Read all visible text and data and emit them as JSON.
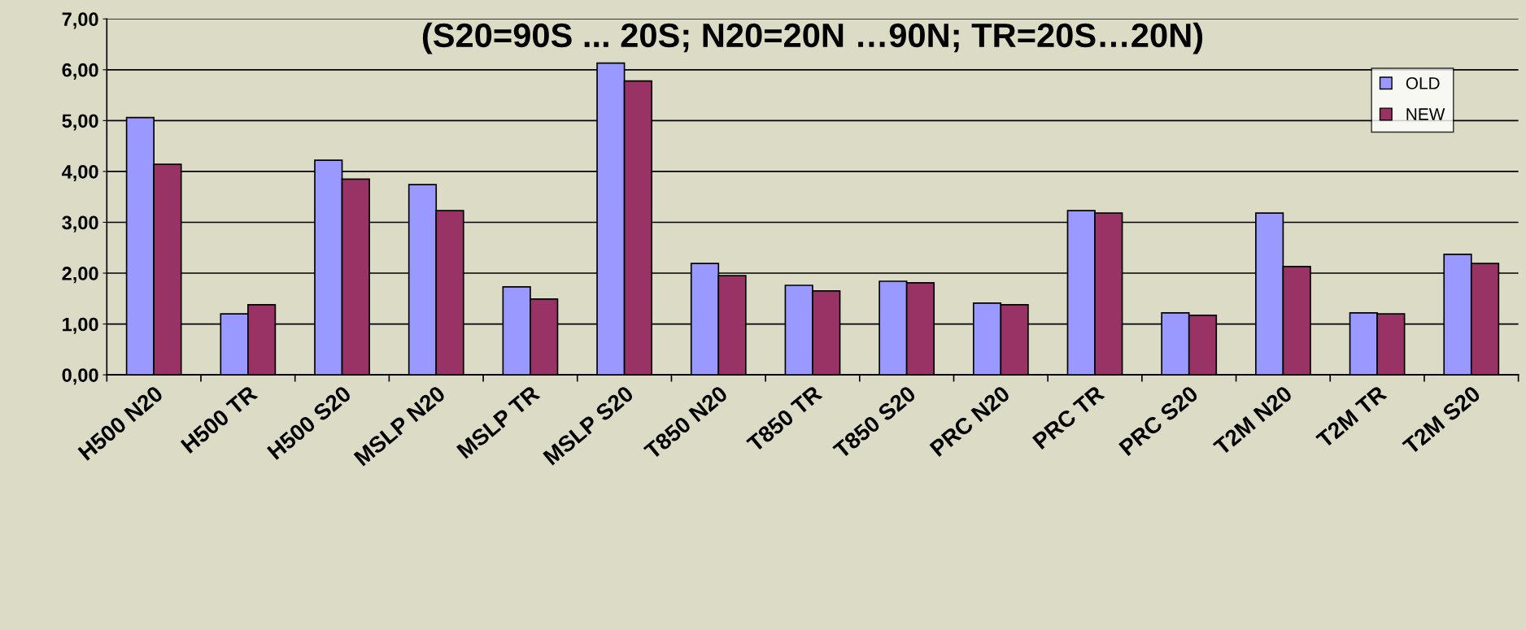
{
  "chart_data": {
    "type": "bar",
    "title": "(S20=90S ... 20S; N20=20N …90N; TR=20S…20N)",
    "categories": [
      "H500 N20",
      "H500 TR",
      "H500 S20",
      "MSLP N20",
      "MSLP TR",
      "MSLP S20",
      "T850 N20",
      "T850 TR",
      "T850 S20",
      "PRC N20",
      "PRC TR",
      "PRC S20",
      "T2M N20",
      "T2M TR",
      "T2M S20"
    ],
    "series": [
      {
        "name": "OLD",
        "color": "#9999ff",
        "values": [
          5.06,
          1.2,
          4.22,
          3.74,
          1.73,
          6.13,
          2.19,
          1.76,
          1.84,
          1.41,
          3.23,
          1.22,
          3.18,
          1.22,
          2.37
        ]
      },
      {
        "name": "NEW",
        "color": "#993366",
        "values": [
          4.14,
          1.38,
          3.85,
          3.23,
          1.49,
          5.78,
          1.95,
          1.65,
          1.81,
          1.38,
          3.18,
          1.17,
          2.13,
          1.2,
          2.19
        ]
      }
    ],
    "ylim": [
      0,
      7
    ],
    "yticks": [
      {
        "value": 0,
        "label": "0,00"
      },
      {
        "value": 1,
        "label": "1,00"
      },
      {
        "value": 2,
        "label": "2,00"
      },
      {
        "value": 3,
        "label": "3,00"
      },
      {
        "value": 4,
        "label": "4,00"
      },
      {
        "value": 5,
        "label": "5,00"
      },
      {
        "value": 6,
        "label": "6,00"
      },
      {
        "value": 7,
        "label": "7,00"
      }
    ],
    "grid": "y",
    "legend": "top right"
  }
}
